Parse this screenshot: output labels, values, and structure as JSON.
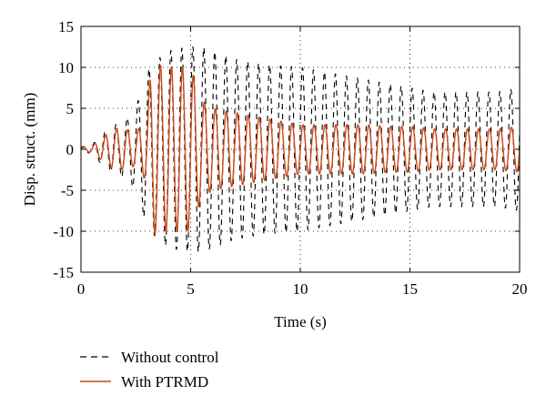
{
  "chart_data": {
    "type": "line",
    "title": "",
    "xlabel": "Time (s)",
    "ylabel": "Disp. struct. (mm)",
    "xlim": [
      0,
      20
    ],
    "ylim": [
      -15,
      15
    ],
    "x_ticks": [
      0,
      5,
      10,
      15,
      20
    ],
    "y_ticks": [
      -15,
      -10,
      -5,
      0,
      5,
      10,
      15
    ],
    "grid": "dotted",
    "legend_position": "bottom-left, below plot",
    "series": [
      {
        "name": "Without control",
        "color": "#000000",
        "style": "dashed",
        "x": [
          0,
          0.5,
          1.0,
          1.5,
          2.0,
          2.5,
          3.0,
          3.5,
          4.0,
          4.5,
          5.0,
          5.5,
          6.0,
          7.0,
          8.0,
          9.0,
          10.0,
          11.0,
          12.0,
          13.0,
          14.0,
          15.0,
          16.0,
          17.0,
          18.0,
          19.0,
          20.0
        ],
        "amplitude": [
          0.3,
          0.5,
          2.0,
          3.0,
          3.5,
          5.0,
          9.5,
          11.0,
          12.0,
          12.3,
          12.5,
          12.5,
          12.0,
          11.0,
          10.5,
          10.2,
          10.0,
          9.5,
          9.0,
          8.5,
          8.0,
          7.5,
          7.0,
          7.0,
          7.0,
          7.0,
          7.5
        ],
        "approx_period_s": 0.5
      },
      {
        "name": "With PTRMD",
        "color": "#cc4a1b",
        "style": "solid",
        "x": [
          0,
          0.5,
          1.0,
          1.5,
          2.0,
          2.5,
          3.0,
          3.2,
          4.0,
          5.0,
          5.5,
          6.0,
          7.0,
          8.0,
          9.0,
          10.0,
          11.0,
          12.0,
          13.0,
          14.0,
          15.0,
          16.0,
          17.0,
          18.0,
          19.0,
          20.0
        ],
        "amplitude": [
          0.2,
          0.4,
          1.5,
          2.5,
          2.5,
          2.0,
          4.0,
          10.5,
          10.0,
          10.0,
          6.0,
          5.0,
          4.5,
          4.0,
          3.5,
          3.0,
          3.0,
          3.0,
          3.0,
          2.8,
          2.8,
          2.5,
          2.5,
          2.5,
          2.5,
          2.8
        ],
        "approx_period_s": 0.5
      }
    ]
  }
}
